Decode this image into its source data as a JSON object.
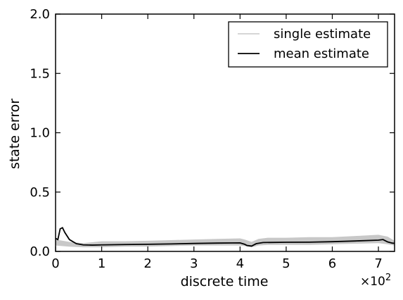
{
  "chart_data": {
    "type": "line",
    "xlabel": "discrete time",
    "ylabel": "state error",
    "x_scale_note": "×10",
    "x_scale_exp": "2",
    "xlim": [
      0,
      7.35
    ],
    "ylim": [
      0.0,
      2.0
    ],
    "x_ticks": [
      0,
      1,
      2,
      3,
      4,
      5,
      6,
      7
    ],
    "x_tick_labels": [
      "0",
      "1",
      "2",
      "3",
      "4",
      "5",
      "6",
      "7"
    ],
    "y_ticks": [
      0.0,
      0.5,
      1.0,
      1.5,
      2.0
    ],
    "y_tick_labels": [
      "0.0",
      "0.5",
      "1.0",
      "1.5",
      "2.0"
    ],
    "grid": false,
    "legend_placement": "top-right",
    "series": [
      {
        "name": "single estimate",
        "color": "#c8c8c8",
        "kind": "band",
        "x": [
          0.0,
          0.3,
          0.6,
          1.0,
          1.5,
          2.0,
          2.5,
          3.0,
          3.5,
          4.0,
          4.1,
          4.25,
          4.4,
          4.6,
          5.0,
          5.5,
          6.0,
          6.5,
          7.0,
          7.2,
          7.35
        ],
        "lower": [
          0.05,
          0.04,
          0.035,
          0.035,
          0.04,
          0.04,
          0.045,
          0.05,
          0.05,
          0.05,
          0.045,
          0.035,
          0.05,
          0.055,
          0.055,
          0.055,
          0.06,
          0.065,
          0.07,
          0.06,
          0.05
        ],
        "upper": [
          0.1,
          0.08,
          0.07,
          0.085,
          0.085,
          0.09,
          0.095,
          0.1,
          0.105,
          0.11,
          0.1,
          0.08,
          0.105,
          0.115,
          0.115,
          0.12,
          0.12,
          0.13,
          0.14,
          0.125,
          0.09
        ]
      },
      {
        "name": "mean estimate",
        "color": "#000000",
        "kind": "line",
        "x": [
          0.0,
          0.05,
          0.1,
          0.15,
          0.2,
          0.3,
          0.45,
          0.6,
          0.8,
          1.0,
          1.5,
          2.0,
          2.5,
          3.0,
          3.5,
          4.0,
          4.1,
          4.15,
          4.25,
          4.35,
          4.5,
          5.0,
          5.5,
          6.0,
          6.5,
          7.0,
          7.1,
          7.2,
          7.3,
          7.35
        ],
        "y": [
          0.11,
          0.1,
          0.19,
          0.2,
          0.16,
          0.1,
          0.065,
          0.055,
          0.053,
          0.055,
          0.058,
          0.06,
          0.063,
          0.067,
          0.07,
          0.072,
          0.06,
          0.05,
          0.045,
          0.065,
          0.075,
          0.077,
          0.078,
          0.082,
          0.088,
          0.095,
          0.1,
          0.08,
          0.07,
          0.068
        ]
      }
    ]
  }
}
